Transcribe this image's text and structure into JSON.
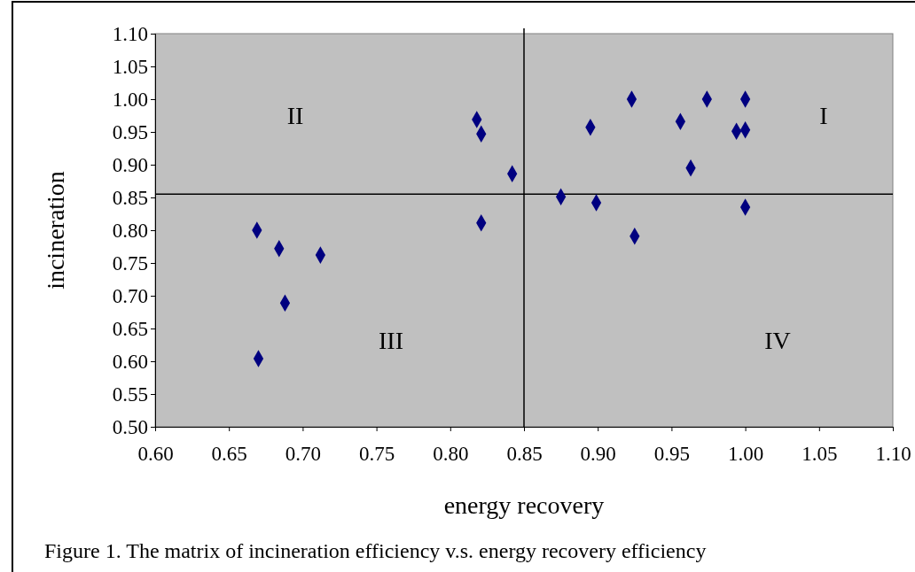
{
  "chart_data": {
    "type": "scatter",
    "xlabel": "energy recovery",
    "ylabel": "incineration",
    "x": [
      0.669,
      0.684,
      0.712,
      0.688,
      0.67,
      0.818,
      0.821,
      0.821,
      0.842,
      0.875,
      0.895,
      0.899,
      0.923,
      0.925,
      0.956,
      0.963,
      0.974,
      0.994,
      1.0,
      1.0,
      1.0
    ],
    "values": [
      0.8,
      0.772,
      0.762,
      0.689,
      0.604,
      0.969,
      0.947,
      0.811,
      0.886,
      0.851,
      0.957,
      0.842,
      1.0,
      0.791,
      0.966,
      0.895,
      1.0,
      0.951,
      1.0,
      0.953,
      0.835
    ],
    "color": "#000080",
    "marker": "diamond",
    "xlim": [
      0.6,
      1.1
    ],
    "xticks": [
      {
        "value": 0.6,
        "label": "0.60"
      },
      {
        "value": 0.65,
        "label": "0.65"
      },
      {
        "value": 0.7,
        "label": "0.70"
      },
      {
        "value": 0.75,
        "label": "0.75"
      },
      {
        "value": 0.8,
        "label": "0.80"
      },
      {
        "value": 0.85,
        "label": "0.85"
      },
      {
        "value": 0.9,
        "label": "0.90"
      },
      {
        "value": 0.95,
        "label": "0.95"
      },
      {
        "value": 1.0,
        "label": "1.00"
      },
      {
        "value": 1.05,
        "label": "1.05"
      },
      {
        "value": 1.1,
        "label": "1.10"
      }
    ],
    "ylim": [
      0.5,
      1.1
    ],
    "yticks": [
      {
        "value": 0.5,
        "label": "0.50"
      },
      {
        "value": 0.55,
        "label": "0.55"
      },
      {
        "value": 0.6,
        "label": "0.60"
      },
      {
        "value": 0.65,
        "label": "0.65"
      },
      {
        "value": 0.7,
        "label": "0.70"
      },
      {
        "value": 0.75,
        "label": "0.75"
      },
      {
        "value": 0.8,
        "label": "0.80"
      },
      {
        "value": 0.85,
        "label": "0.85"
      },
      {
        "value": 0.9,
        "label": "0.90"
      },
      {
        "value": 0.95,
        "label": "0.95"
      },
      {
        "value": 1.0,
        "label": "1.00"
      },
      {
        "value": 1.05,
        "label": "1.05"
      },
      {
        "value": 1.1,
        "label": "1.10"
      }
    ],
    "grid": false,
    "ref_lines": [
      {
        "axis": "x",
        "value": 0.85,
        "color": "#000000"
      },
      {
        "axis": "y",
        "value": 0.855,
        "color": "#000000"
      }
    ],
    "annotations": [
      "I",
      "II",
      "III",
      "IV",
      "Figure 1. The matrix of incineration efficiency v.s. energy recovery efficiency"
    ]
  }
}
